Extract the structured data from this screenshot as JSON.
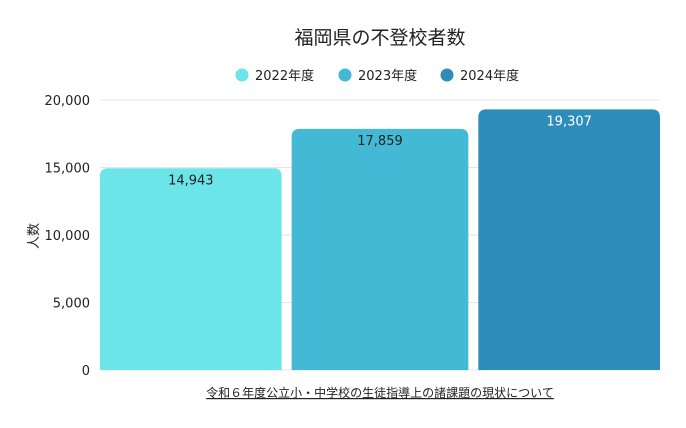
{
  "chart_data": {
    "type": "bar",
    "title": "福岡県の不登校者数",
    "categories": [
      "2022年度",
      "2023年度",
      "2024年度"
    ],
    "values": [
      14943,
      17859,
      19307
    ],
    "value_labels": [
      "14,943",
      "17,859",
      "19,307"
    ],
    "colors": [
      "#6ce5e8",
      "#44b9d6",
      "#2d8cba"
    ],
    "label_colors": [
      "#222222",
      "#222222",
      "#ffffff"
    ],
    "legend": [
      "2022年度",
      "2023年度",
      "2024年度"
    ],
    "legend_position": "top-center",
    "xlabel": "令和６年度公立小・中学校の生徒指導上の諸課題の現状について",
    "ylabel": "人数",
    "ylim": [
      0,
      20000
    ],
    "yticks": [
      0,
      5000,
      10000,
      15000,
      20000
    ],
    "ytick_labels": [
      "0",
      "5,000",
      "10,000",
      "15,000",
      "20,000"
    ],
    "grid": true
  }
}
